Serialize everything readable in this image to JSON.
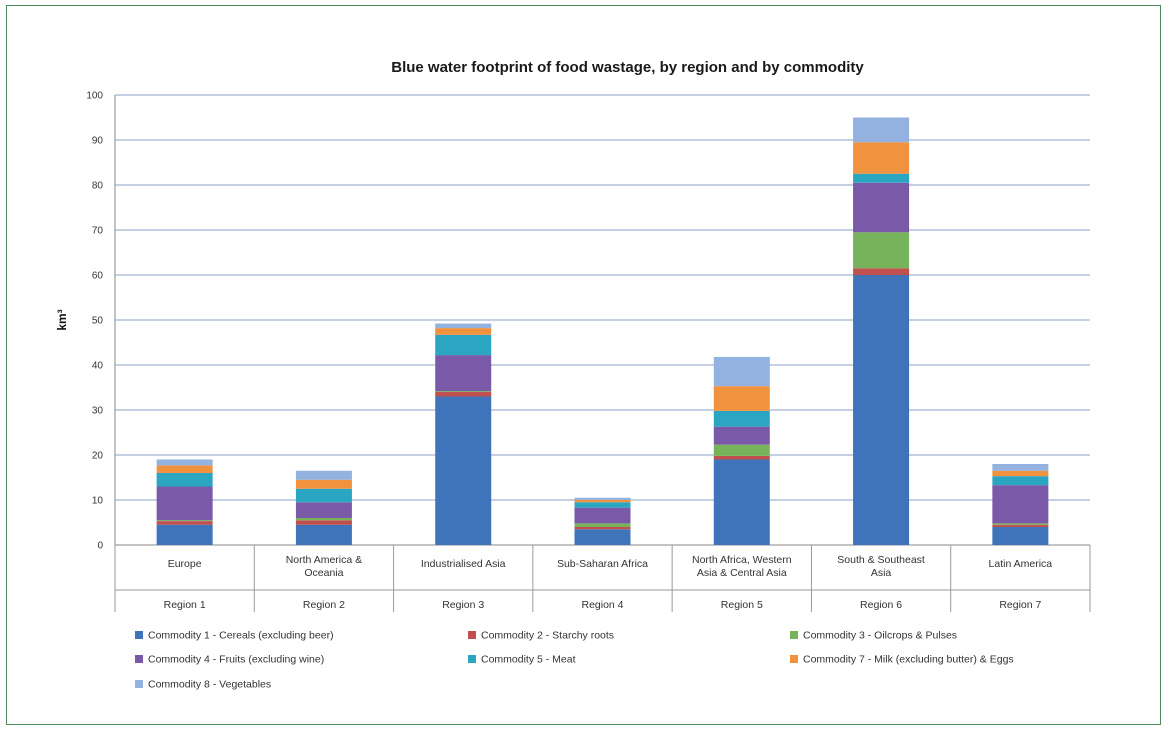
{
  "chart_data": {
    "type": "bar",
    "stacked": true,
    "title": "Blue water footprint of food wastage, by region and by commodity",
    "ylabel": "km³",
    "ylim": [
      0,
      100
    ],
    "yticks": [
      0,
      10,
      20,
      30,
      40,
      50,
      60,
      70,
      80,
      90,
      100
    ],
    "grid": true,
    "legend_position": "bottom",
    "categories": [
      [
        "Europe"
      ],
      [
        "North America &",
        "Oceania"
      ],
      [
        "Industrialised Asia"
      ],
      [
        "Sub-Saharan Africa"
      ],
      [
        "North Africa, Western",
        "Asia & Central Asia"
      ],
      [
        "South & Southeast",
        "Asia"
      ],
      [
        "Latin America"
      ]
    ],
    "groups": [
      "Region 1",
      "Region 2",
      "Region 3",
      "Region 4",
      "Region 5",
      "Region 6",
      "Region 7"
    ],
    "series": [
      {
        "name": "Commodity 1 - Cereals (excluding beer)",
        "color": "#3f74bb",
        "values": [
          4.5,
          4.5,
          33,
          3.5,
          19,
          60,
          4
        ]
      },
      {
        "name": "Commodity 2 - Starchy roots",
        "color": "#c0504d",
        "values": [
          0.8,
          1.0,
          1.0,
          0.5,
          0.8,
          1.5,
          0.5
        ]
      },
      {
        "name": "Commodity 3 - Oilcrops & Pulses",
        "color": "#77b35a",
        "values": [
          0.2,
          0.5,
          0.2,
          0.8,
          2.5,
          8,
          0.3
        ]
      },
      {
        "name": "Commodity 4 - Fruits (excluding wine)",
        "color": "#7a5aa8",
        "values": [
          7.5,
          3.5,
          8,
          3.5,
          4,
          11,
          8.5
        ]
      },
      {
        "name": "Commodity 5 - Meat",
        "color": "#2aa5c2",
        "values": [
          3,
          3,
          4.5,
          1.2,
          3.5,
          2,
          2
        ]
      },
      {
        "name": "Commodity 7 - Milk (excluding butter) & Eggs",
        "color": "#f0923e",
        "values": [
          1.7,
          2,
          1.5,
          0.5,
          5.5,
          7,
          1.2
        ]
      },
      {
        "name": "Commodity 8 - Vegetables",
        "color": "#93b2df",
        "values": [
          1.3,
          2,
          1,
          0.5,
          6.5,
          5.5,
          1.5
        ]
      }
    ]
  }
}
